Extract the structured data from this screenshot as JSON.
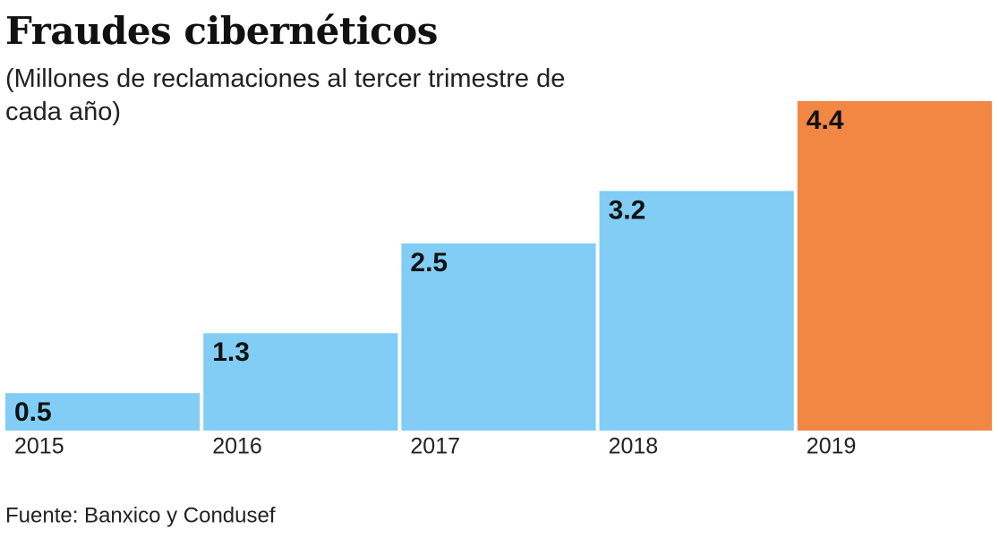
{
  "chart_data": {
    "type": "bar",
    "title": "Fraudes cibernéticos",
    "subtitle": "(Millones de reclamaciones al tercer trimestre de cada año)",
    "categories": [
      "2015",
      "2016",
      "2017",
      "2018",
      "2019"
    ],
    "values": [
      0.5,
      1.3,
      2.5,
      3.2,
      4.4
    ],
    "colors": [
      "#81cdf5",
      "#81cdf5",
      "#81cdf5",
      "#81cdf5",
      "#f28744"
    ],
    "source": "Fuente: Banxico y Condusef"
  }
}
